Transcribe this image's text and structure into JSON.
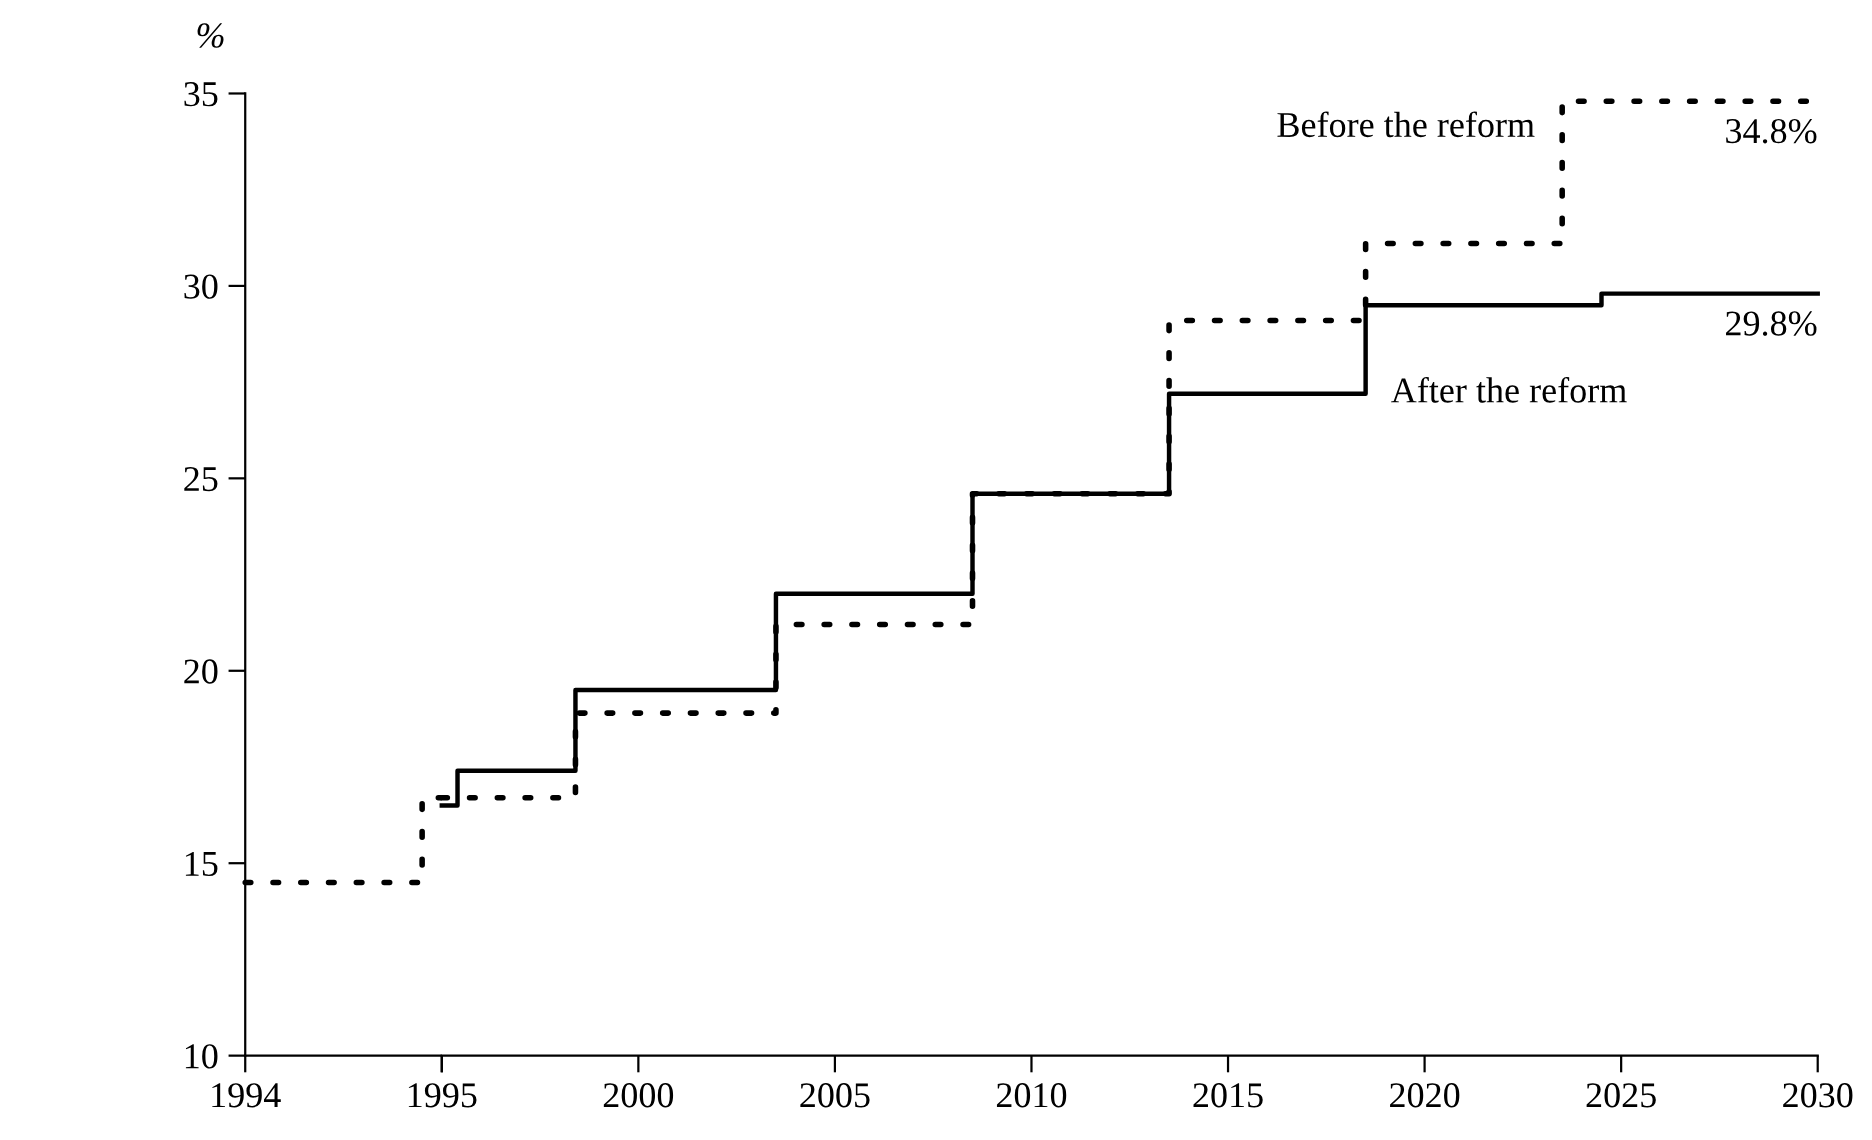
{
  "chart_data": [
    {
      "type": "step",
      "ylabel": "%",
      "xlim": [
        1994,
        1995
      ],
      "xticks": [
        1994,
        1995
      ],
      "ylim": [
        10,
        35
      ],
      "yticks": [
        10,
        15,
        20,
        25,
        30,
        35
      ],
      "grid": false,
      "legend": false,
      "marker": "none",
      "series": [
        {
          "color": "#000000",
          "line_style": "dotted",
          "x": [
            1994,
            1994.9,
            1995
          ],
          "values": [
            14.5,
            16.7,
            16.7
          ]
        }
      ]
    },
    {
      "type": "step",
      "xlim": [
        1995,
        2030
      ],
      "xticks": [
        {
          "value": 1995,
          "label": null
        },
        2000,
        2005,
        2010,
        2015,
        2020,
        2025,
        2030
      ],
      "ylim": [
        10,
        35
      ],
      "tick_labels": "x",
      "grid": false,
      "legend": false,
      "marker": "none",
      "series": [
        {
          "name": "Before the reform",
          "color": "#000000",
          "line_style": "dotted",
          "x": [
            1995,
            1998.4,
            2003.5,
            2008.5,
            2013.5,
            2018.5,
            2023.5,
            2030
          ],
          "values": [
            16.7,
            18.9,
            21.2,
            24.6,
            29.1,
            31.1,
            34.8,
            34.8
          ]
        },
        {
          "name": "After the reform",
          "color": "#000000",
          "line_style": "solid",
          "x": [
            1995,
            1995.4,
            1998.4,
            2003.5,
            2008.5,
            2013.5,
            2018.5,
            2024.5,
            2030
          ],
          "values": [
            16.5,
            17.4,
            19.5,
            22.0,
            24.6,
            27.2,
            29.5,
            29.8,
            29.8
          ]
        }
      ],
      "annotations": [
        {
          "text": "34.8%",
          "x": 2030,
          "y": 34.8
        },
        {
          "text": "29.8%",
          "x": 2030,
          "y": 29.8
        }
      ]
    }
  ]
}
